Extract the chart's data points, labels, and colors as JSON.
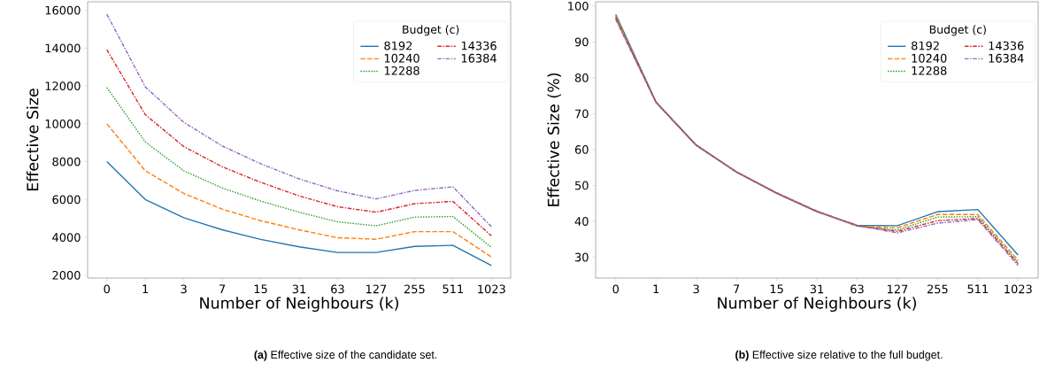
{
  "chart_data": [
    {
      "type": "line",
      "title": "**(a)** Effective size of the candidate set.",
      "xlabel": "Number of Neighbours (k)",
      "ylabel": "Effective Size",
      "legend_title": "Budget (c)",
      "legend": "top right",
      "categories": [
        "0",
        "1",
        "3",
        "7",
        "15",
        "31",
        "63",
        "127",
        "255",
        "511",
        "1023"
      ],
      "ylim": [
        1850,
        16450
      ],
      "yticks": [
        2000,
        4000,
        6000,
        8000,
        10000,
        12000,
        14000,
        16000
      ],
      "series": [
        {
          "name": "8192",
          "color": "#1f77b4",
          "line_style": "solid",
          "values": [
            8000,
            6000,
            5040,
            4400,
            3890,
            3500,
            3200,
            3200,
            3520,
            3580,
            2510
          ]
        },
        {
          "name": "10240",
          "color": "#ff7f0e",
          "line_style": "dashed",
          "values": [
            10000,
            7520,
            6320,
            5490,
            4880,
            4400,
            3980,
            3900,
            4300,
            4300,
            2960
          ]
        },
        {
          "name": "12288",
          "color": "#2ca02c",
          "line_style": "dotted",
          "values": [
            11920,
            9040,
            7520,
            6610,
            5920,
            5330,
            4820,
            4610,
            5070,
            5100,
            3470
          ]
        },
        {
          "name": "14336",
          "color": "#d62728",
          "line_style": "dashdot",
          "values": [
            13920,
            10480,
            8800,
            7730,
            6910,
            6190,
            5620,
            5330,
            5780,
            5900,
            4080
          ]
        },
        {
          "name": "16384",
          "color": "#9467bd",
          "line_style": "dashdot",
          "values": [
            15790,
            11950,
            10080,
            8830,
            7890,
            7090,
            6460,
            6030,
            6480,
            6670,
            4560
          ]
        }
      ]
    },
    {
      "type": "line",
      "title": "**(b)** Effective size relative to the full budget.",
      "xlabel": "Number of Neighbours (k)",
      "ylabel": "Effective Size (%)",
      "legend_title": "Budget (c)",
      "legend": "top right",
      "categories": [
        "0",
        "1",
        "3",
        "7",
        "15",
        "31",
        "63",
        "127",
        "255",
        "511",
        "1023"
      ],
      "ylim": [
        24.2,
        101.2
      ],
      "yticks": [
        30,
        40,
        50,
        60,
        70,
        80,
        90,
        100
      ],
      "series": [
        {
          "name": "8192",
          "color": "#1f77b4",
          "line_style": "solid",
          "values": [
            97.7,
            73.3,
            61.3,
            53.8,
            47.8,
            42.7,
            38.9,
            38.8,
            42.7,
            43.3,
            30.6
          ]
        },
        {
          "name": "10240",
          "color": "#ff7f0e",
          "line_style": "dashed",
          "values": [
            97.3,
            73.2,
            61.2,
            53.7,
            47.8,
            42.7,
            38.7,
            38.2,
            41.9,
            41.9,
            29.2
          ]
        },
        {
          "name": "12288",
          "color": "#2ca02c",
          "line_style": "dotted",
          "values": [
            97.0,
            73.2,
            61.2,
            53.7,
            47.9,
            42.8,
            38.7,
            37.6,
            41.2,
            41.3,
            28.6
          ]
        },
        {
          "name": "14336",
          "color": "#d62728",
          "line_style": "dashdot",
          "values": [
            96.6,
            73.2,
            61.2,
            53.8,
            47.9,
            42.8,
            38.8,
            37.2,
            40.2,
            40.8,
            28.2
          ]
        },
        {
          "name": "16384",
          "color": "#9467bd",
          "line_style": "dashdot",
          "values": [
            96.2,
            73.1,
            61.1,
            53.8,
            48.0,
            42.9,
            38.8,
            36.8,
            39.5,
            40.5,
            27.7
          ]
        }
      ]
    }
  ]
}
